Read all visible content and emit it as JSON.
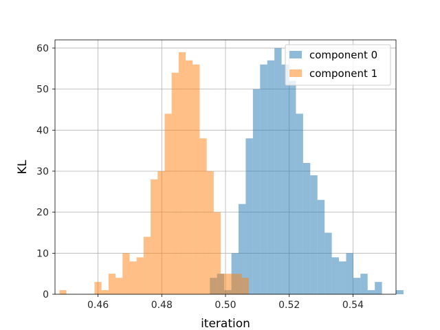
{
  "chart_data": {
    "type": "bar",
    "title": "",
    "xlabel": "iteration",
    "ylabel": "KL",
    "xlim": [
      0.4465,
      0.5535
    ],
    "ylim": [
      0,
      62
    ],
    "xticks": [
      0.46,
      0.48,
      0.5,
      0.52,
      0.54
    ],
    "xtick_labels": [
      "0.46",
      "0.48",
      "0.50",
      "0.52",
      "0.54"
    ],
    "yticks": [
      0,
      10,
      20,
      30,
      40,
      50,
      60
    ],
    "ytick_labels": [
      "0",
      "10",
      "20",
      "30",
      "40",
      "50",
      "60"
    ],
    "grid": true,
    "legend_position": "top-right",
    "series": [
      {
        "name": "component 0",
        "color": "#1f77b4",
        "opacity": 0.5,
        "bin_start": 0.4951,
        "bin_width": 0.00225,
        "counts": [
          4,
          5,
          1,
          10,
          22,
          38,
          50,
          56,
          57,
          60,
          56,
          52,
          44,
          32,
          29,
          23,
          15,
          9,
          8,
          10,
          4,
          5,
          1,
          3,
          0,
          0,
          1
        ]
      },
      {
        "name": "component 1",
        "color": "#ff7f0e",
        "opacity": 0.5,
        "bin_start": 0.4479,
        "bin_width": 0.0022,
        "counts": [
          1,
          0,
          0,
          0,
          0,
          3,
          1,
          5,
          4,
          10,
          8,
          9,
          14,
          28,
          30,
          44,
          54,
          59,
          57,
          56,
          38,
          30,
          20,
          5,
          5,
          5,
          4
        ]
      }
    ]
  }
}
